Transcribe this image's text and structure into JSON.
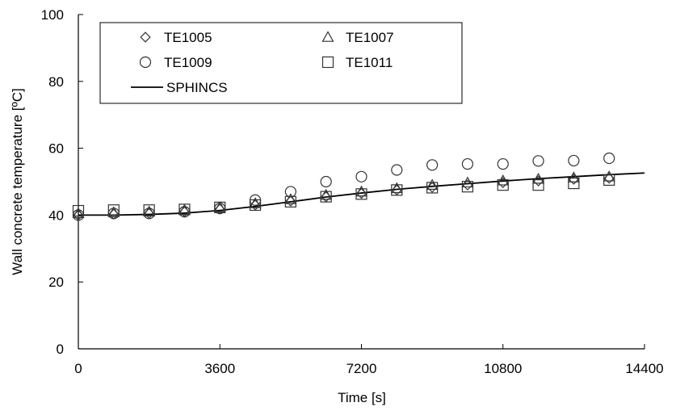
{
  "chart_data": {
    "type": "scatter",
    "title": "",
    "xlabel": "Time [s]",
    "ylabel": "Wall concrete temperature [ºC]",
    "xlim": [
      0,
      14400
    ],
    "ylim": [
      0,
      100
    ],
    "xticks": [
      0,
      3600,
      7200,
      10800,
      14400
    ],
    "yticks": [
      0,
      20,
      40,
      60,
      80,
      100
    ],
    "grid": false,
    "legend_position": "top",
    "series": [
      {
        "name": "TE1005",
        "marker": "diamond",
        "x": [
          0,
          900,
          1800,
          2700,
          3600,
          4500,
          5400,
          6300,
          7200,
          8100,
          9000,
          9900,
          10800,
          11700,
          12600,
          13500
        ],
        "y": [
          40.0,
          40.3,
          40.5,
          41.0,
          41.8,
          43.0,
          44.2,
          45.5,
          46.5,
          47.5,
          48.3,
          49.0,
          49.7,
          50.2,
          50.7,
          51.0
        ]
      },
      {
        "name": "TE1007",
        "marker": "triangle",
        "x": [
          0,
          900,
          1800,
          2700,
          3600,
          4500,
          5400,
          6300,
          7200,
          8100,
          9000,
          9900,
          10800,
          11700,
          12600,
          13500
        ],
        "y": [
          40.5,
          40.8,
          41.0,
          41.5,
          42.3,
          43.5,
          44.7,
          46.0,
          47.0,
          48.0,
          49.0,
          49.7,
          50.3,
          50.8,
          51.2,
          51.5
        ]
      },
      {
        "name": "TE1009",
        "marker": "circle",
        "x": [
          0,
          900,
          1800,
          2700,
          3600,
          4500,
          5400,
          6300,
          7200,
          8100,
          9000,
          9900,
          10800,
          11700,
          12600,
          13500
        ],
        "y": [
          40.0,
          40.5,
          40.5,
          41.0,
          42.0,
          44.5,
          47.0,
          50.0,
          51.5,
          53.5,
          55.0,
          55.3,
          55.3,
          56.2,
          56.3,
          57.0
        ]
      },
      {
        "name": "TE1011",
        "marker": "square",
        "x": [
          0,
          900,
          1800,
          2700,
          3600,
          4500,
          5400,
          6300,
          7200,
          8100,
          9000,
          9900,
          10800,
          11700,
          12600,
          13500
        ],
        "y": [
          41.3,
          41.5,
          41.5,
          41.7,
          42.3,
          43.0,
          44.0,
          45.5,
          46.3,
          47.5,
          48.2,
          48.5,
          49.0,
          49.0,
          49.5,
          50.5
        ]
      }
    ],
    "line_series": {
      "name": "SPHINCS",
      "x": [
        0,
        900,
        1800,
        2700,
        3600,
        4500,
        5400,
        6300,
        7200,
        8100,
        9000,
        9900,
        10800,
        11700,
        12600,
        13500,
        14400
      ],
      "y": [
        40.0,
        40.0,
        40.2,
        40.6,
        41.4,
        42.6,
        44.0,
        45.4,
        46.6,
        47.7,
        48.6,
        49.4,
        50.2,
        50.9,
        51.5,
        52.1,
        52.6
      ]
    }
  }
}
